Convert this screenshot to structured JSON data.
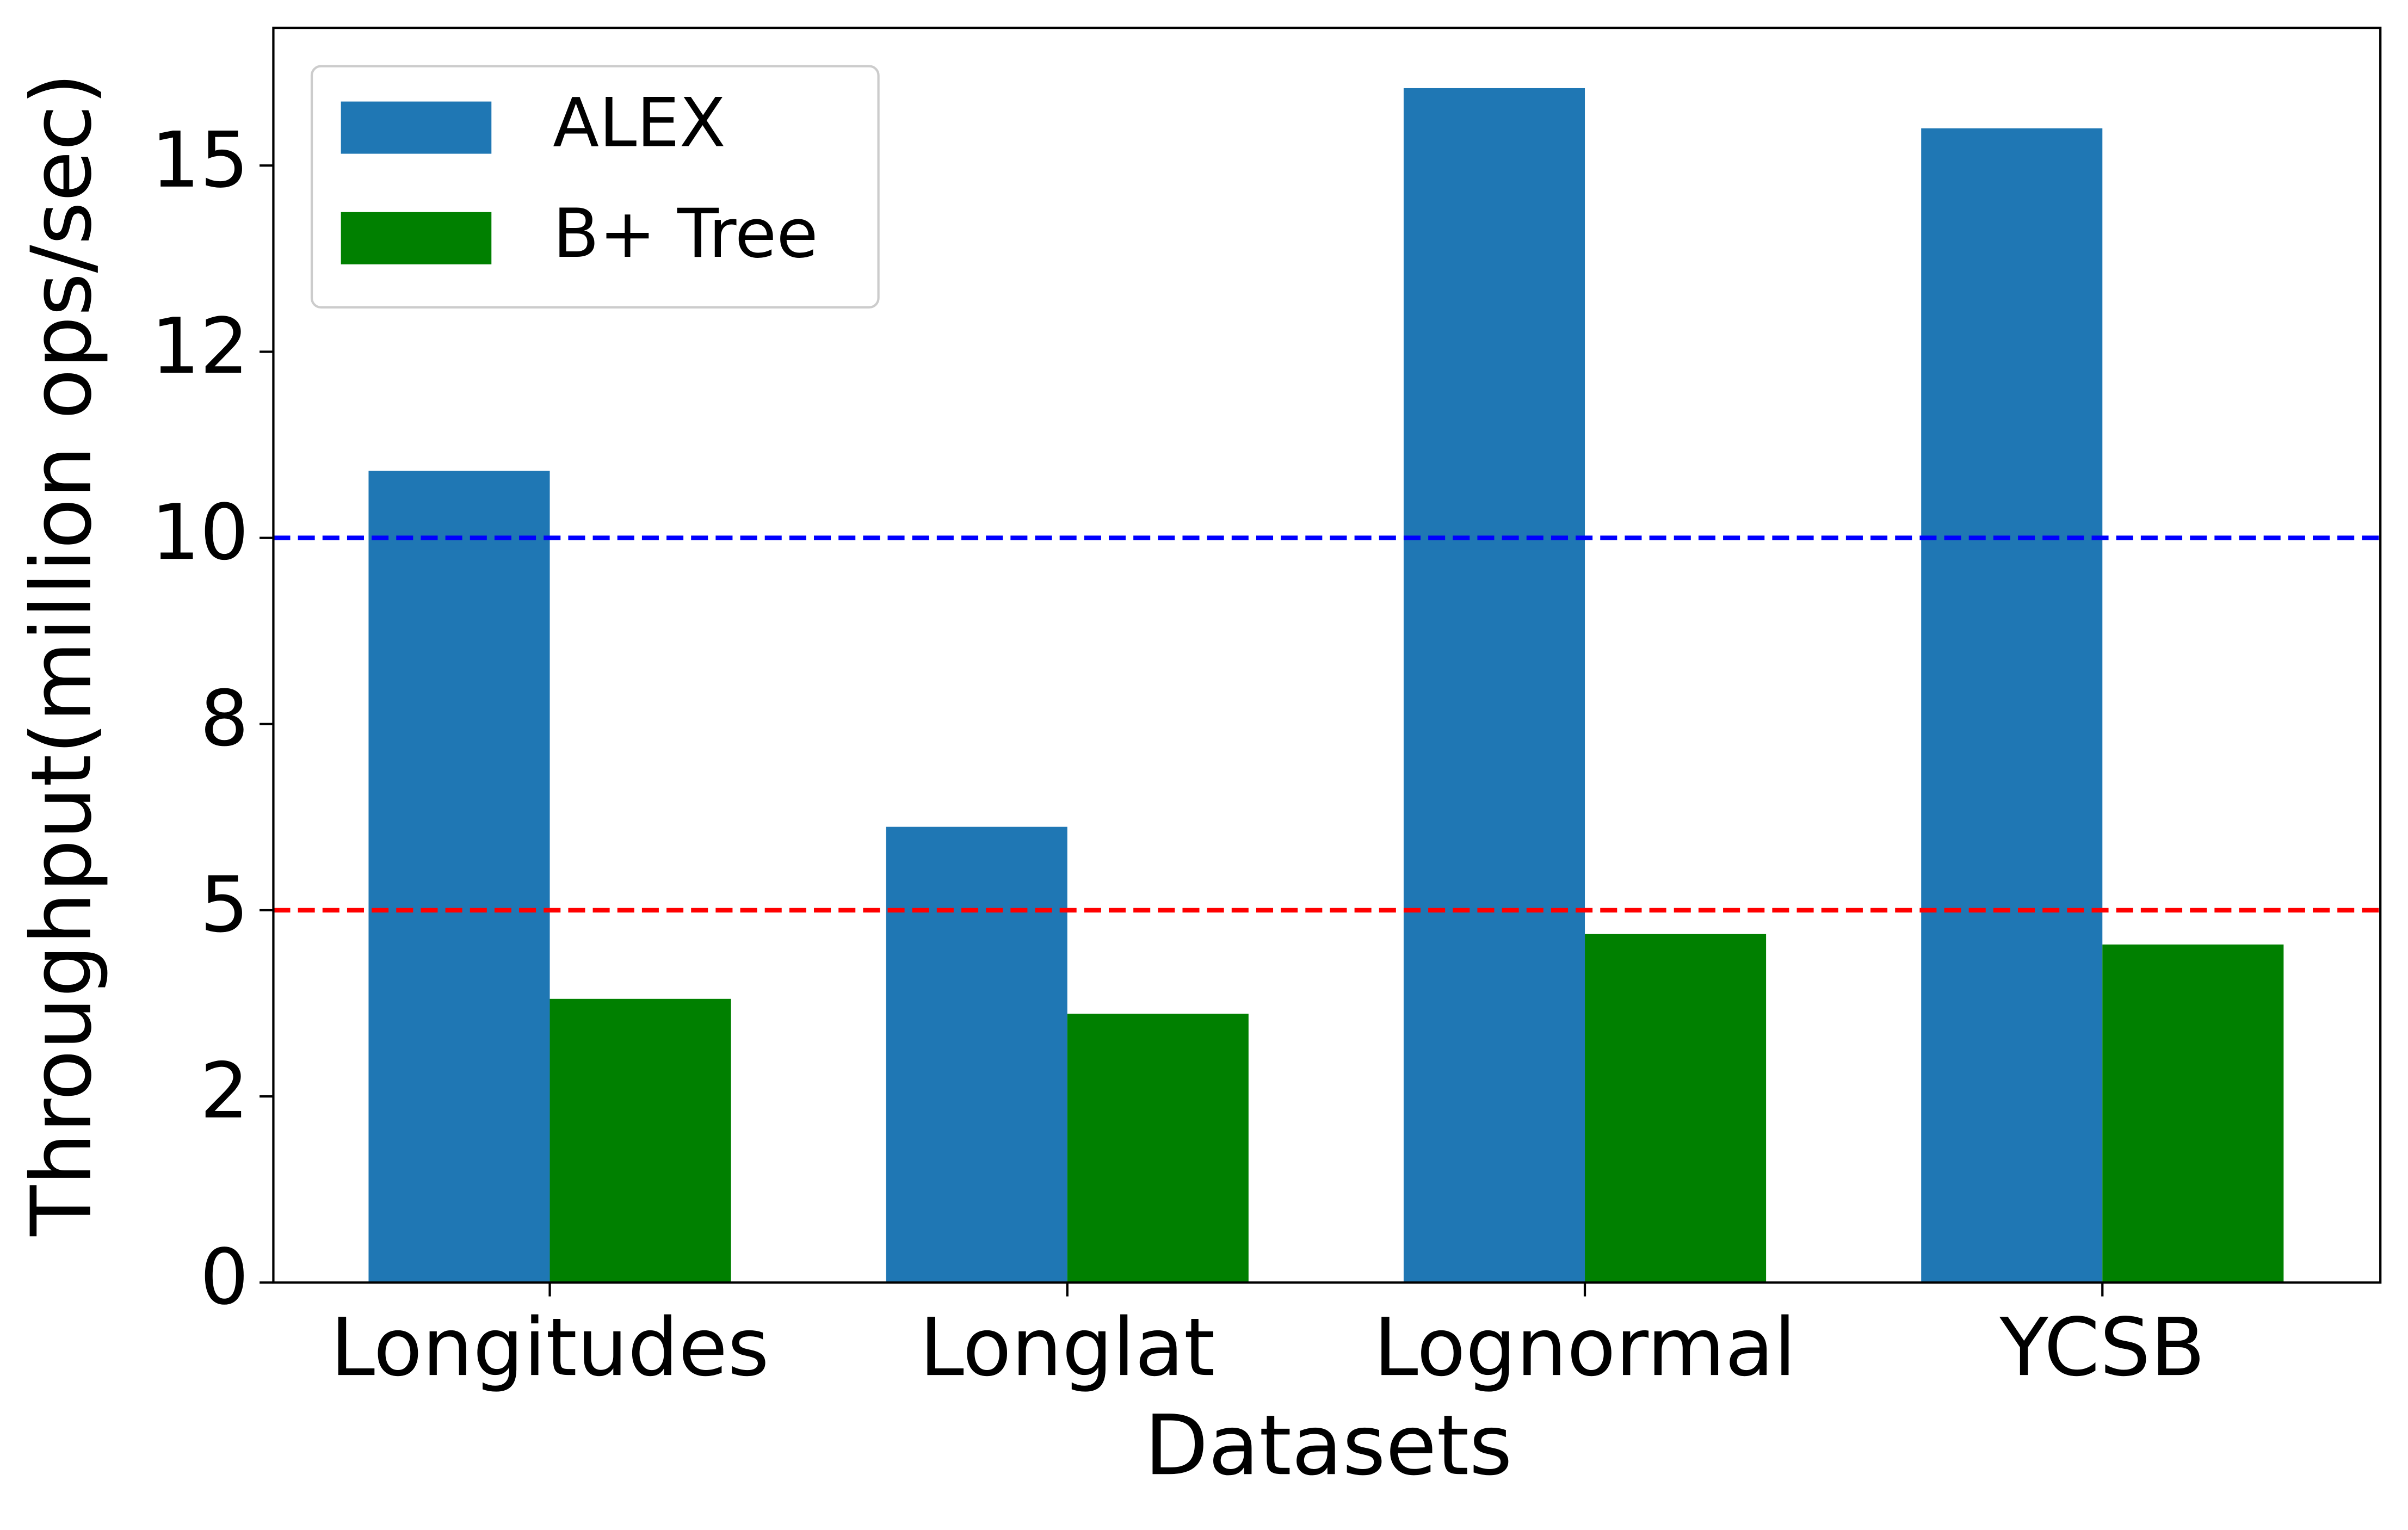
{
  "chart_data": {
    "type": "bar",
    "categories": [
      "Longitudes",
      "Longlat",
      "Lognormal",
      "YCSB"
    ],
    "series": [
      {
        "name": "ALEX",
        "color": "#1f77b4",
        "values": [
          10.9,
          6.12,
          16.04,
          15.5
        ]
      },
      {
        "name": "B+ Tree",
        "color": "#008000",
        "values": [
          3.81,
          3.61,
          4.68,
          4.54
        ]
      }
    ],
    "xlabel": "Datasets",
    "ylabel": "Throughput(million ops/sec)",
    "ylim": [
      0,
      16.85
    ],
    "yticks": [
      0,
      {
        "value": 2.5,
        "label": "2"
      },
      5,
      {
        "value": 7.5,
        "label": "8"
      },
      10,
      {
        "value": 12.5,
        "label": "12"
      },
      15
    ],
    "hlines": [
      {
        "value": 10,
        "color": "#0000ff"
      },
      {
        "value": 5,
        "color": "#ff0000"
      }
    ],
    "legend": "upper left"
  }
}
